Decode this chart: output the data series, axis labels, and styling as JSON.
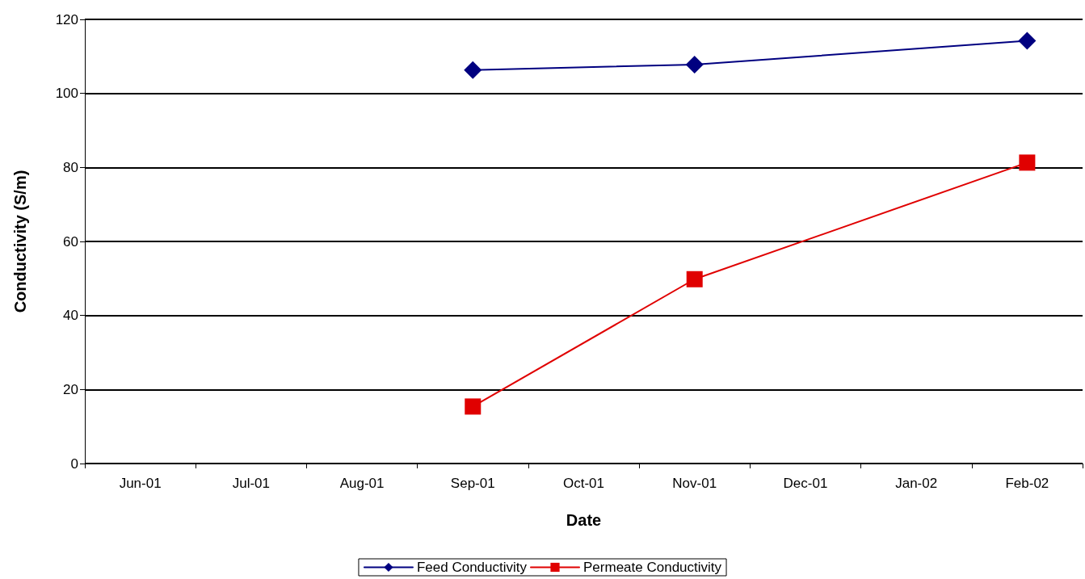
{
  "chart_data": {
    "type": "line",
    "xlabel": "Date",
    "ylabel": "Conductivity (S/m)",
    "categories": [
      "Jun-01",
      "Jul-01",
      "Aug-01",
      "Sep-01",
      "Oct-01",
      "Nov-01",
      "Dec-01",
      "Jan-02",
      "Feb-02"
    ],
    "series": [
      {
        "name": "Feed Conductivity",
        "color": "#000080",
        "marker": "diamond",
        "values": [
          null,
          null,
          null,
          106.3,
          null,
          107.8,
          null,
          null,
          114.2
        ]
      },
      {
        "name": "Permeate Conductivity",
        "color": "#e00000",
        "marker": "square",
        "values": [
          null,
          null,
          null,
          15.4,
          null,
          49.8,
          null,
          null,
          81.3
        ]
      }
    ],
    "ylim": [
      0,
      120
    ],
    "yticks": [
      0,
      20,
      40,
      60,
      80,
      100,
      120
    ],
    "grid": "y",
    "legend": "bottom",
    "line_style": "solid"
  }
}
